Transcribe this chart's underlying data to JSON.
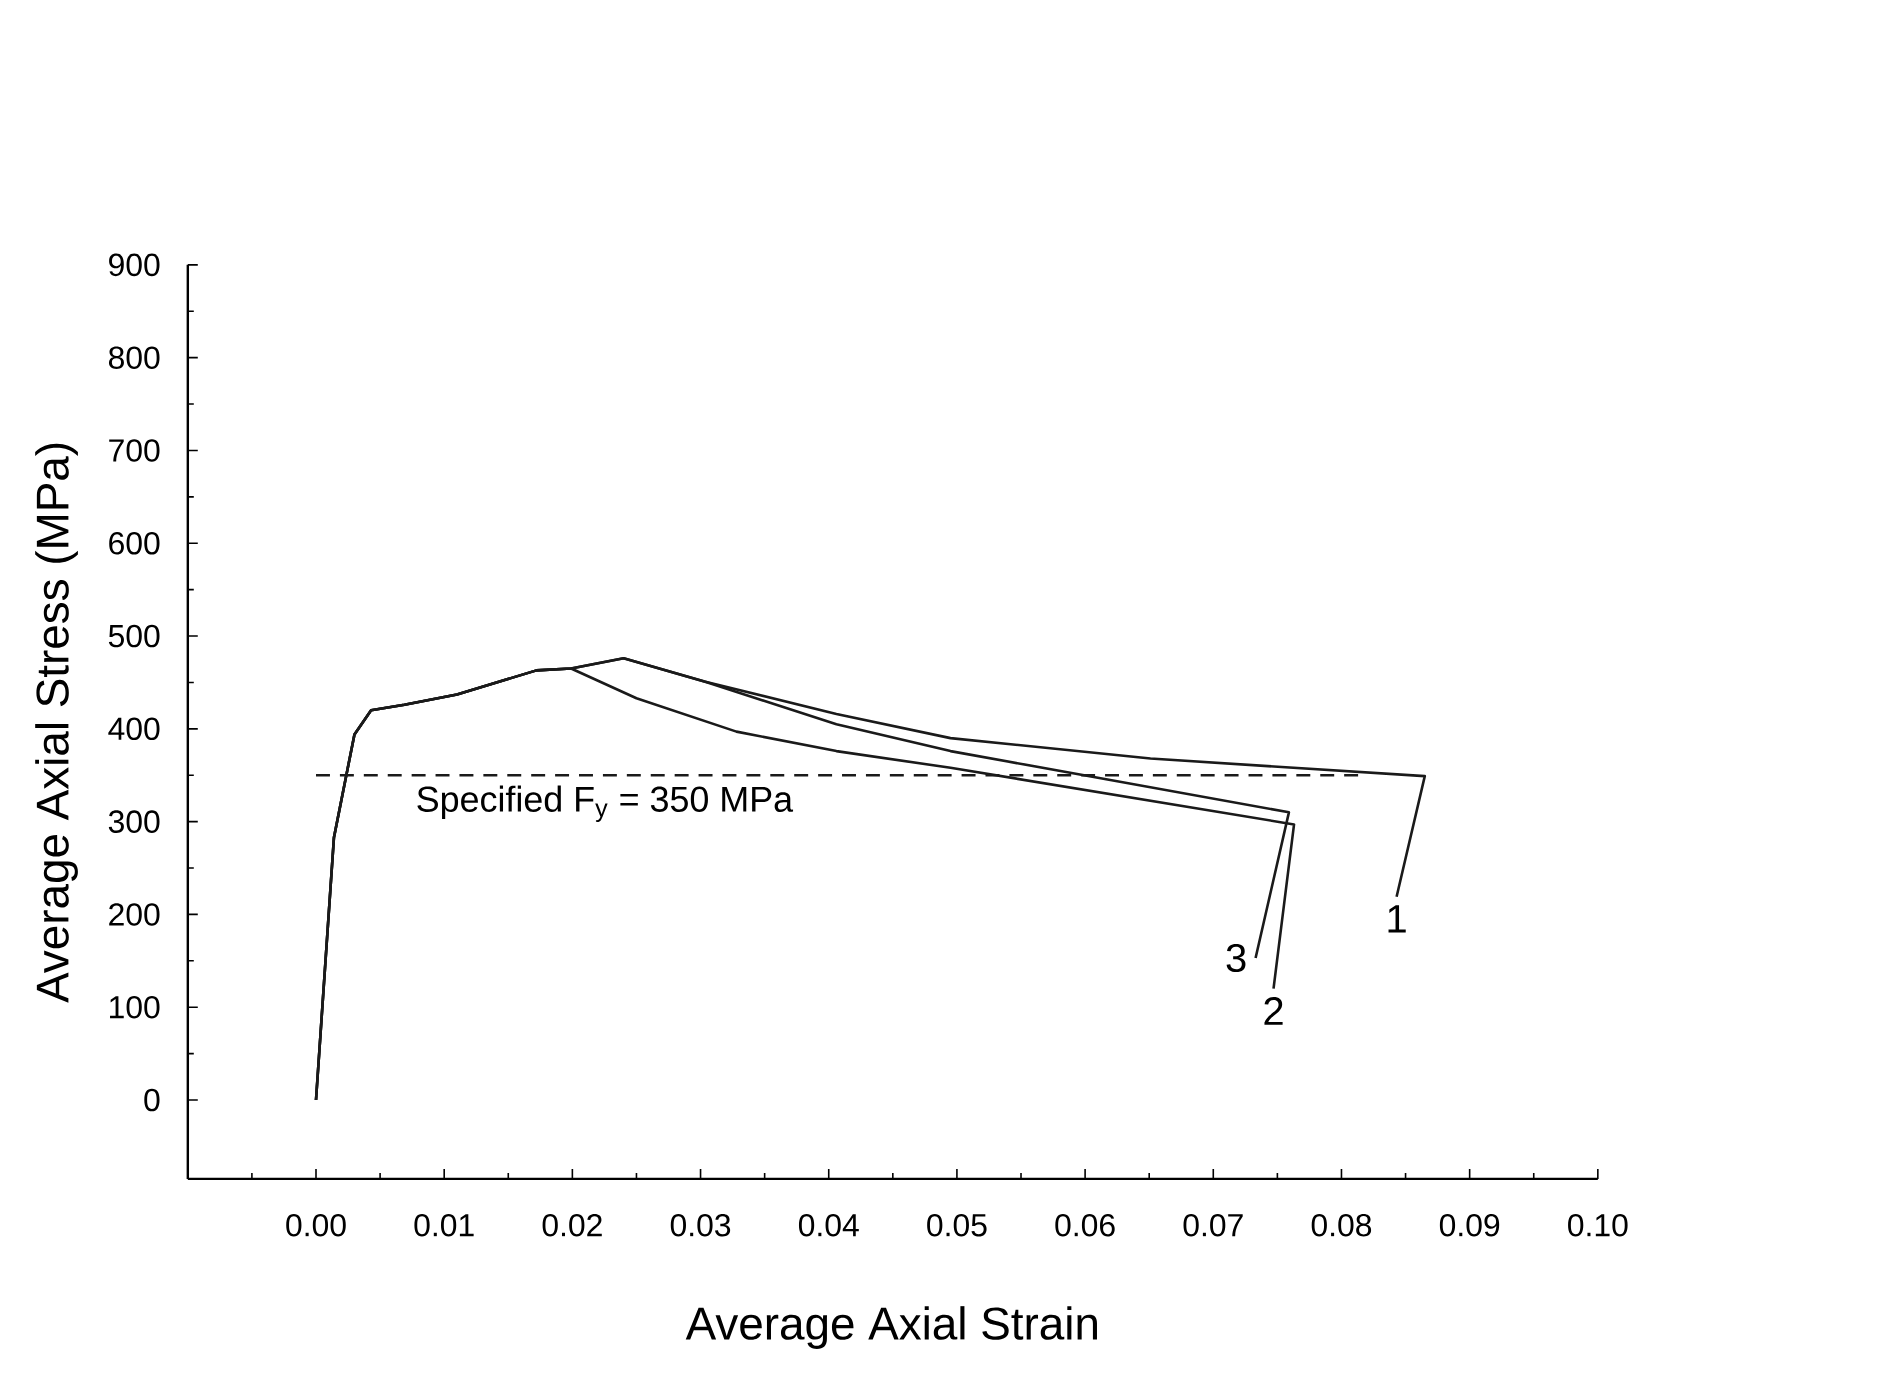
{
  "chart_data": {
    "type": "line",
    "xlabel": "Average Axial Strain",
    "ylabel": "Average Axial Stress (MPa)",
    "xlim": [
      -0.01,
      0.1
    ],
    "xticks": [
      {
        "value": -0.01,
        "label": null
      },
      {
        "value": 0,
        "label": "0.00"
      },
      {
        "value": 0.01,
        "label": "0.01"
      },
      {
        "value": 0.02,
        "label": "0.02"
      },
      {
        "value": 0.03,
        "label": "0.03"
      },
      {
        "value": 0.04,
        "label": "0.04"
      },
      {
        "value": 0.05,
        "label": "0.05"
      },
      {
        "value": 0.06,
        "label": "0.06"
      },
      {
        "value": 0.07,
        "label": "0.07"
      },
      {
        "value": 0.08,
        "label": "0.08"
      },
      {
        "value": 0.09,
        "label": "0.09"
      },
      {
        "value": 0.1,
        "label": "0.10"
      }
    ],
    "ylim": [
      -85,
      900
    ],
    "yticks": [
      0,
      100,
      200,
      300,
      400,
      500,
      600,
      700,
      800,
      900
    ],
    "grid": false,
    "marker": "none",
    "line_style": "solid",
    "series": [
      {
        "name": "1",
        "color": "#1a1a1a",
        "x": [
          0.0,
          0.0014,
          0.003,
          0.0043,
          0.0069,
          0.011,
          0.0172,
          0.0199,
          0.024,
          0.0303,
          0.0406,
          0.0495,
          0.0651,
          0.0865,
          0.0843
        ],
        "values": [
          0,
          283,
          394,
          420,
          426,
          437,
          463,
          465,
          476,
          451,
          416,
          390,
          368,
          349,
          219
        ]
      },
      {
        "name": "2",
        "color": "#1a1a1a",
        "x": [
          0.0,
          0.0014,
          0.003,
          0.0043,
          0.0069,
          0.011,
          0.0172,
          0.0199,
          0.025,
          0.0328,
          0.0406,
          0.0495,
          0.0763,
          0.0747
        ],
        "values": [
          0,
          283,
          394,
          420,
          426,
          437,
          463,
          465,
          433,
          397,
          376,
          358,
          297,
          120
        ]
      },
      {
        "name": "3",
        "color": "#1a1a1a",
        "x": [
          0.0,
          0.0014,
          0.003,
          0.0043,
          0.0069,
          0.011,
          0.0172,
          0.0199,
          0.024,
          0.0303,
          0.0406,
          0.0495,
          0.0759,
          0.0733
        ],
        "values": [
          0,
          283,
          394,
          420,
          426,
          437,
          463,
          465,
          476,
          451,
          405,
          376,
          310,
          153
        ]
      }
    ],
    "ref_lines": [
      {
        "axis": "y",
        "value": 350,
        "label": "Specified F$_{y}$ = 350 MPa",
        "line_style": "dashed",
        "color": "#1a1a1a"
      }
    ]
  }
}
